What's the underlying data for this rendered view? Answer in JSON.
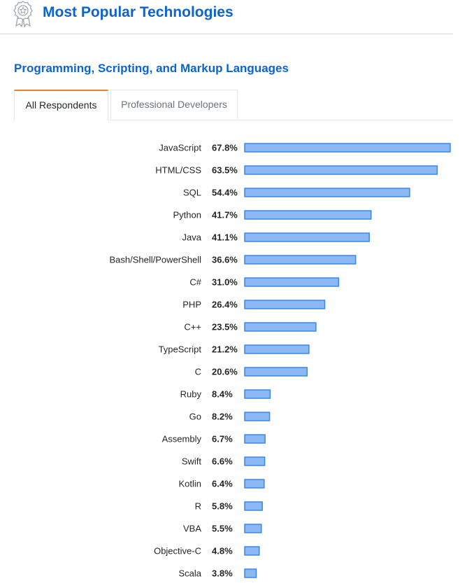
{
  "header": {
    "title": "Most Popular Technologies",
    "icon": "award-badge-icon"
  },
  "section": {
    "title": "Programming, Scripting, and Markup Languages"
  },
  "tabs": [
    {
      "label": "All Respondents",
      "active": true
    },
    {
      "label": "Professional Developers",
      "active": false
    }
  ],
  "colors": {
    "accent": "#0a64d2",
    "tab_active_border": "#f48024",
    "bar_fill": "#8bb8f3",
    "bar_stroke": "#3b88ea"
  },
  "chart_data": {
    "type": "bar",
    "orientation": "horizontal",
    "unit": "%",
    "xlim": [
      0,
      67.8
    ],
    "categories": [
      "JavaScript",
      "HTML/CSS",
      "SQL",
      "Python",
      "Java",
      "Bash/Shell/PowerShell",
      "C#",
      "PHP",
      "C++",
      "TypeScript",
      "C",
      "Ruby",
      "Go",
      "Assembly",
      "Swift",
      "Kotlin",
      "R",
      "VBA",
      "Objective-C",
      "Scala"
    ],
    "values": [
      67.8,
      63.5,
      54.4,
      41.7,
      41.1,
      36.6,
      31.0,
      26.4,
      23.5,
      21.2,
      20.6,
      8.4,
      8.2,
      6.7,
      6.6,
      6.4,
      5.8,
      5.5,
      4.8,
      3.8
    ],
    "value_labels": [
      "67.8%",
      "63.5%",
      "54.4%",
      "41.7%",
      "41.1%",
      "36.6%",
      "31.0%",
      "26.4%",
      "23.5%",
      "21.2%",
      "20.6%",
      "8.4%",
      "8.2%",
      "6.7%",
      "6.6%",
      "6.4%",
      "5.8%",
      "5.5%",
      "4.8%",
      "3.8%"
    ]
  }
}
